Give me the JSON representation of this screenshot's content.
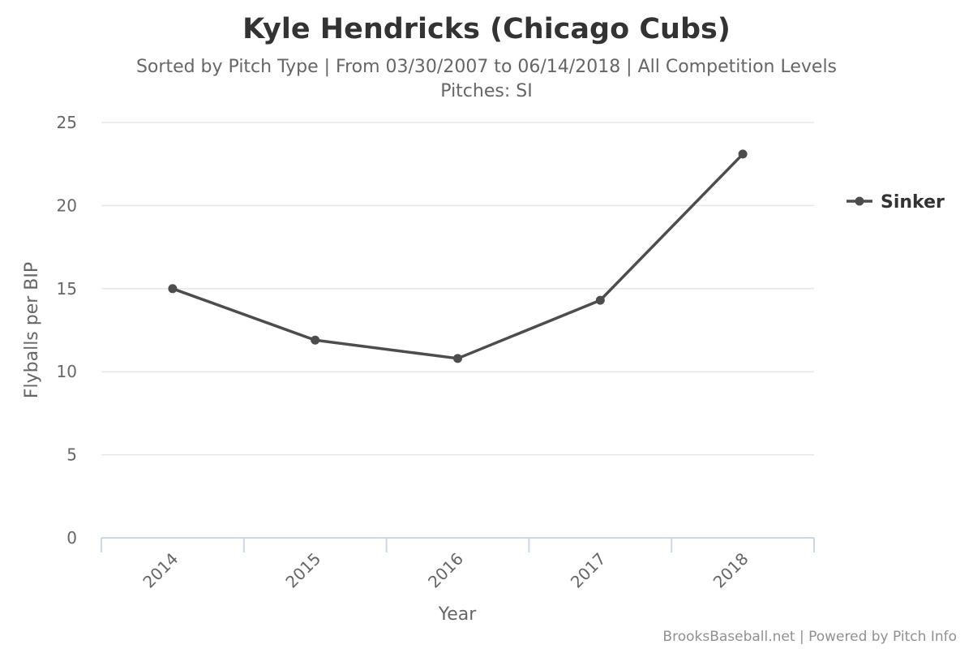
{
  "chart_data": {
    "type": "line",
    "title": "Kyle Hendricks (Chicago Cubs)",
    "subtitle_lines": [
      "Sorted by Pitch Type | From 03/30/2007 to 06/14/2018 | All Competition Levels",
      "Pitches: SI"
    ],
    "xlabel": "Year",
    "ylabel": "Flyballs per BIP",
    "categories": [
      "2014",
      "2015",
      "2016",
      "2017",
      "2018"
    ],
    "y_ticks": [
      "0",
      "5",
      "10",
      "15",
      "20",
      "25"
    ],
    "ylim": [
      0,
      25
    ],
    "grid": true,
    "legend_position": "right",
    "series": [
      {
        "name": "Sinker",
        "color": "#4d4d4d",
        "values": [
          15.0,
          11.9,
          10.8,
          14.3,
          23.1
        ]
      }
    ]
  },
  "credits": "BrooksBaseball.net | Powered by Pitch Info"
}
